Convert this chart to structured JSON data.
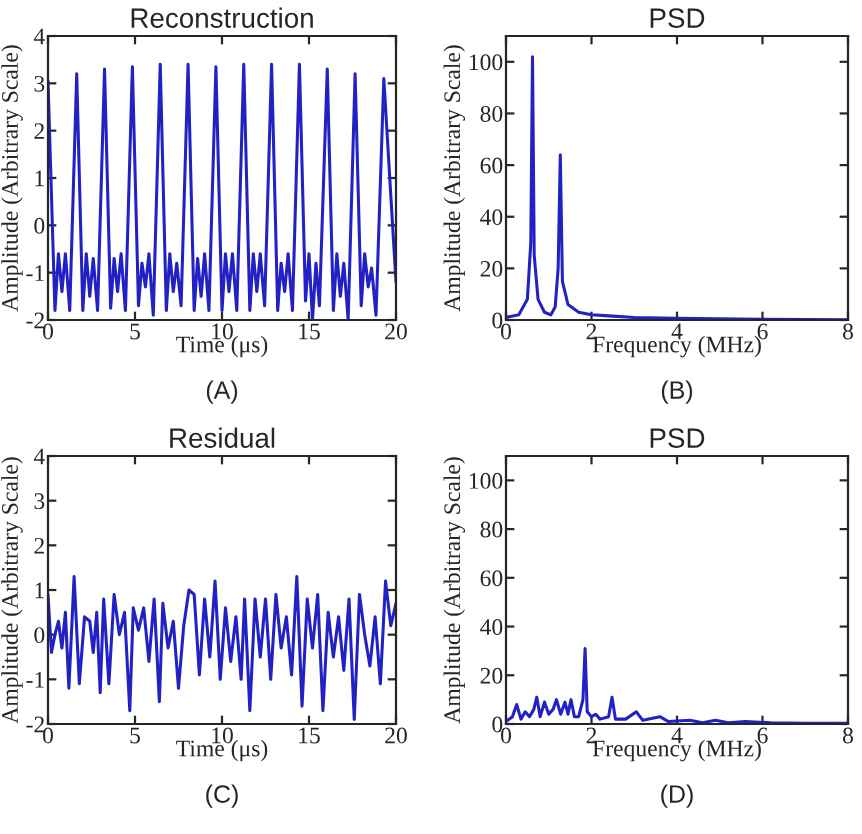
{
  "chart_data": [
    {
      "type": "line",
      "title": "Reconstruction",
      "xlabel": "Time (μs)",
      "ylabel": "Amplitude (Arbitrary Scale)",
      "annotations": [
        "(A)"
      ],
      "xlim": [
        0,
        20
      ],
      "ylim": [
        -2,
        4
      ],
      "xticks": [
        0,
        5,
        10,
        15,
        20
      ],
      "yticks": [
        -2,
        -1,
        0,
        1,
        2,
        3,
        4
      ],
      "grid": false,
      "legend": false,
      "series": [
        {
          "color": "#2222c4",
          "x": [
            0,
            0.4,
            0.6,
            0.8,
            1.0,
            1.25,
            1.65,
            2.0,
            2.2,
            2.4,
            2.6,
            2.85,
            3.25,
            3.6,
            3.8,
            4.0,
            4.2,
            4.45,
            4.85,
            5.2,
            5.4,
            5.6,
            5.8,
            6.05,
            6.45,
            6.8,
            7.0,
            7.2,
            7.4,
            7.65,
            8.05,
            8.4,
            8.6,
            8.8,
            9.0,
            9.25,
            9.65,
            10.0,
            10.2,
            10.4,
            10.6,
            10.85,
            11.25,
            11.6,
            11.8,
            12.0,
            12.2,
            12.45,
            12.85,
            13.2,
            13.4,
            13.6,
            13.8,
            14.05,
            14.45,
            14.8,
            15.0,
            15.2,
            15.4,
            15.6,
            16.05,
            16.4,
            16.6,
            16.8,
            17.0,
            17.25,
            17.65,
            18.0,
            18.2,
            18.4,
            18.6,
            18.85,
            19.3,
            20.0
          ],
          "values": [
            3.05,
            -1.8,
            -0.6,
            -1.4,
            -0.6,
            -1.8,
            3.2,
            -1.8,
            -0.6,
            -1.5,
            -0.7,
            -1.8,
            3.3,
            -1.75,
            -0.7,
            -1.4,
            -0.6,
            -1.8,
            3.35,
            -1.7,
            -0.8,
            -1.3,
            -0.6,
            -1.9,
            3.4,
            -1.8,
            -0.6,
            -1.4,
            -0.8,
            -1.7,
            3.4,
            -1.8,
            -0.7,
            -1.5,
            -0.6,
            -1.8,
            3.35,
            -1.8,
            -0.6,
            -1.4,
            -0.6,
            -1.8,
            3.4,
            -1.8,
            -0.6,
            -1.4,
            -0.6,
            -1.7,
            3.4,
            -1.8,
            -0.8,
            -1.4,
            -0.6,
            -1.8,
            3.4,
            -1.6,
            -0.6,
            -2.0,
            -0.8,
            -1.7,
            3.3,
            -1.8,
            -0.6,
            -1.5,
            -0.8,
            -2.0,
            3.2,
            -1.7,
            -0.6,
            -1.3,
            -0.9,
            -1.9,
            3.1,
            -1.2
          ]
        }
      ]
    },
    {
      "type": "line",
      "title": "PSD",
      "xlabel": "Frequency (MHz)",
      "ylabel": "Amplitude (Arbitrary Scale)",
      "annotations": [
        "(B)"
      ],
      "xlim": [
        0,
        8
      ],
      "ylim": [
        0,
        110
      ],
      "xticks": [
        0,
        2,
        4,
        6,
        8
      ],
      "yticks": [
        0,
        20,
        40,
        60,
        80,
        100
      ],
      "grid": false,
      "legend": false,
      "series": [
        {
          "color": "#2222c4",
          "x": [
            0,
            0.3,
            0.5,
            0.58,
            0.62,
            0.66,
            0.75,
            0.9,
            1.05,
            1.15,
            1.22,
            1.27,
            1.32,
            1.45,
            1.7,
            2.0,
            2.5,
            3,
            4,
            5,
            6,
            7,
            8
          ],
          "values": [
            1,
            2,
            8,
            30,
            102,
            25,
            8,
            3,
            2,
            5,
            20,
            64,
            15,
            6,
            3,
            2,
            1.5,
            1,
            0.7,
            0.5,
            0.3,
            0.2,
            0.1
          ]
        }
      ]
    },
    {
      "type": "line",
      "title": "Residual",
      "xlabel": "Time (μs)",
      "ylabel": "Amplitude (Arbitrary Scale)",
      "annotations": [
        "(C)"
      ],
      "xlim": [
        0,
        20
      ],
      "ylim": [
        -2,
        4
      ],
      "xticks": [
        0,
        5,
        10,
        15,
        20
      ],
      "yticks": [
        -2,
        -1,
        0,
        1,
        2,
        3,
        4
      ],
      "grid": false,
      "legend": false,
      "series": [
        {
          "color": "#2222c4",
          "x": [
            0,
            0.2,
            0.4,
            0.6,
            0.8,
            1.0,
            1.2,
            1.5,
            1.8,
            2.1,
            2.4,
            2.6,
            2.8,
            3.0,
            3.2,
            3.5,
            3.8,
            4.1,
            4.4,
            4.7,
            4.9,
            5.2,
            5.5,
            5.8,
            6.1,
            6.4,
            6.6,
            6.9,
            7.2,
            7.5,
            7.8,
            8.1,
            8.4,
            8.7,
            9.0,
            9.3,
            9.6,
            9.9,
            10.2,
            10.5,
            10.8,
            11.1,
            11.3,
            11.6,
            11.9,
            12.2,
            12.5,
            12.8,
            13.1,
            13.4,
            13.7,
            14.0,
            14.3,
            14.6,
            14.9,
            15.2,
            15.5,
            15.8,
            16.1,
            16.4,
            16.7,
            17.0,
            17.3,
            17.6,
            17.9,
            18.2,
            18.5,
            18.8,
            19.1,
            19.4,
            19.7,
            20.0
          ],
          "values": [
            0.9,
            -0.4,
            0.0,
            0.3,
            -0.3,
            0.5,
            -1.2,
            1.3,
            -1.1,
            0.4,
            0.3,
            -0.4,
            0.5,
            -1.3,
            0.8,
            -1.1,
            0.9,
            0.0,
            0.5,
            -1.7,
            0.6,
            0.1,
            0.6,
            -0.6,
            0.8,
            -1.5,
            0.7,
            -0.3,
            0.3,
            -1.2,
            0.2,
            1.0,
            0.9,
            -0.9,
            0.8,
            -0.5,
            1.2,
            -1.0,
            0.6,
            -0.6,
            0.4,
            -1.0,
            0.8,
            -1.7,
            0.8,
            -0.5,
            0.8,
            -1.0,
            0.9,
            -0.3,
            0.4,
            -0.9,
            1.3,
            -1.6,
            0.8,
            -0.3,
            0.9,
            -1.7,
            0.5,
            -0.5,
            0.4,
            -0.8,
            0.8,
            -1.9,
            0.9,
            0.0,
            -0.7,
            0.4,
            -1.1,
            1.2,
            0.2,
            0.7
          ]
        }
      ]
    },
    {
      "type": "line",
      "title": "PSD",
      "xlabel": "Frequency (MHz)",
      "ylabel": "Amplitude (Arbitrary Scale)",
      "annotations": [
        "(D)"
      ],
      "xlim": [
        0,
        8
      ],
      "ylim": [
        0,
        110
      ],
      "xticks": [
        0,
        2,
        4,
        6,
        8
      ],
      "yticks": [
        0,
        20,
        40,
        60,
        80,
        100
      ],
      "grid": false,
      "legend": false,
      "series": [
        {
          "color": "#2222c4",
          "x": [
            0,
            0.15,
            0.25,
            0.35,
            0.45,
            0.55,
            0.65,
            0.72,
            0.8,
            0.9,
            1.0,
            1.1,
            1.18,
            1.28,
            1.38,
            1.45,
            1.52,
            1.6,
            1.7,
            1.8,
            1.85,
            1.9,
            2.0,
            2.1,
            2.2,
            2.4,
            2.48,
            2.56,
            2.8,
            3.05,
            3.2,
            3.6,
            3.8,
            4.3,
            4.6,
            4.9,
            5.2,
            5.6,
            6.2,
            7,
            8
          ],
          "values": [
            1,
            3,
            8,
            2,
            5,
            3,
            6,
            11,
            3,
            9,
            4,
            6,
            10,
            4,
            9,
            4,
            10,
            3,
            3,
            10,
            31,
            5,
            3,
            4,
            2,
            3,
            11,
            2,
            2,
            5,
            1.5,
            3,
            1,
            1.5,
            0.5,
            1.5,
            0.5,
            1,
            0.5,
            0.3,
            0.3
          ]
        }
      ]
    }
  ]
}
